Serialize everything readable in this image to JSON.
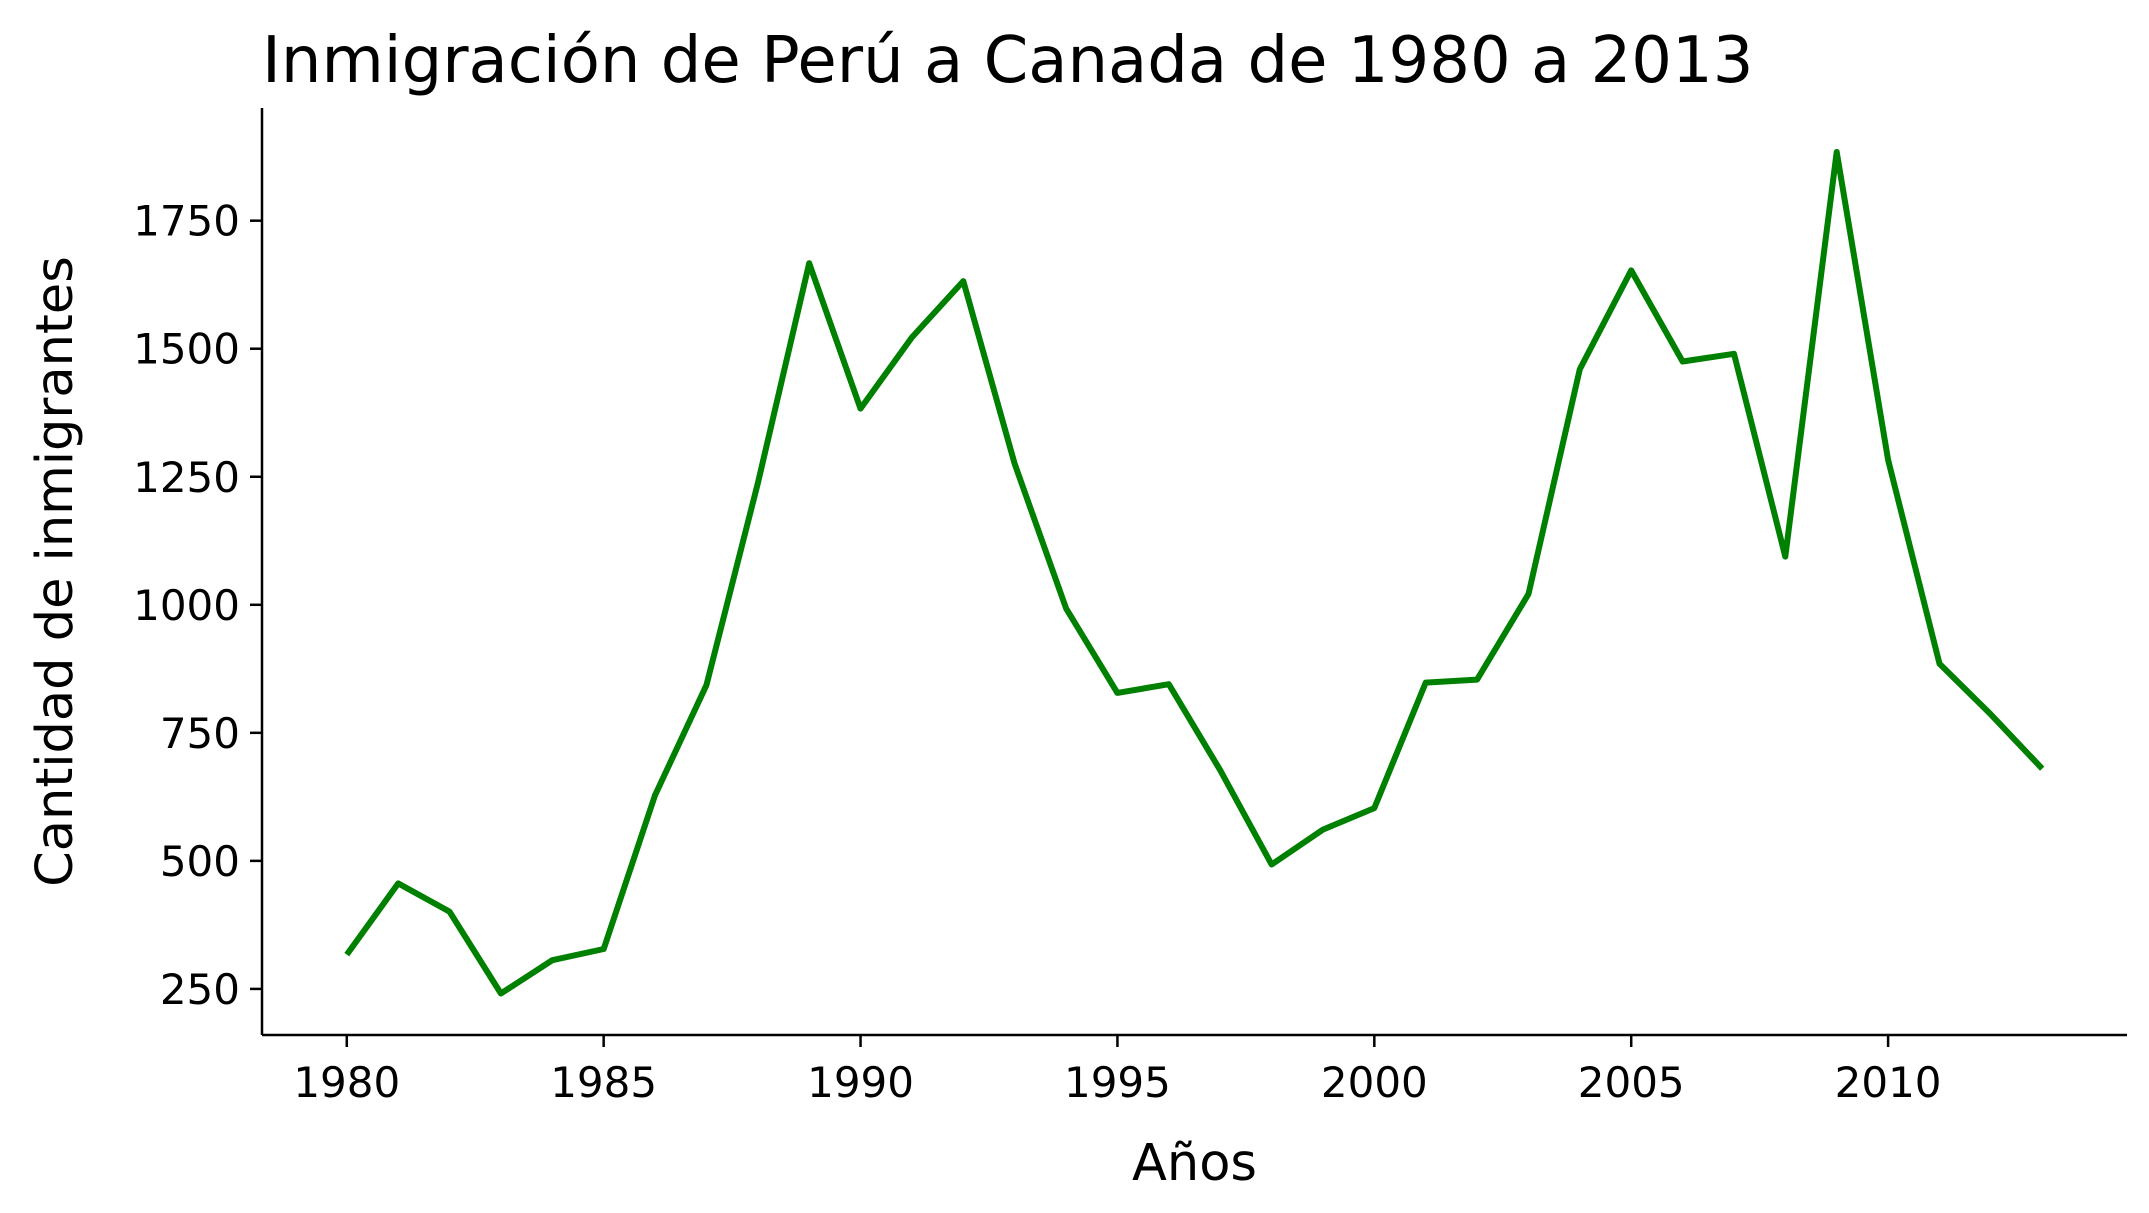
{
  "chart_data": {
    "type": "line",
    "title": "Inmigración de Perú a Canada de 1980 a 2013",
    "xlabel": "Años",
    "ylabel": "Cantidad de inmigrantes",
    "xlim": [
      1978.35,
      2014.65
    ],
    "ylim": [
      160,
      1970
    ],
    "xticks": [
      1980,
      1985,
      1990,
      1995,
      2000,
      2005,
      2010
    ],
    "yticks": [
      250,
      500,
      750,
      1000,
      1250,
      1500,
      1750
    ],
    "grid": false,
    "legend": "none",
    "color": "#008000",
    "x": [
      1980,
      1981,
      1982,
      1983,
      1984,
      1985,
      1986,
      1987,
      1988,
      1989,
      1990,
      1991,
      1992,
      1993,
      1994,
      1995,
      1996,
      1997,
      1998,
      1999,
      2000,
      2001,
      2002,
      2003,
      2004,
      2005,
      2006,
      2007,
      2008,
      2009,
      2010,
      2011,
      2012,
      2013
    ],
    "series": [
      {
        "values": [
          317,
          456,
          401,
          241,
          306,
          328,
          628,
          843,
          1237,
          1667,
          1383,
          1522,
          1632,
          1275,
          993,
          828,
          845,
          677,
          493,
          561,
          603,
          848,
          854,
          1021,
          1460,
          1653,
          1475,
          1490,
          1094,
          1884,
          1283,
          885,
          786,
          680
        ]
      }
    ]
  }
}
